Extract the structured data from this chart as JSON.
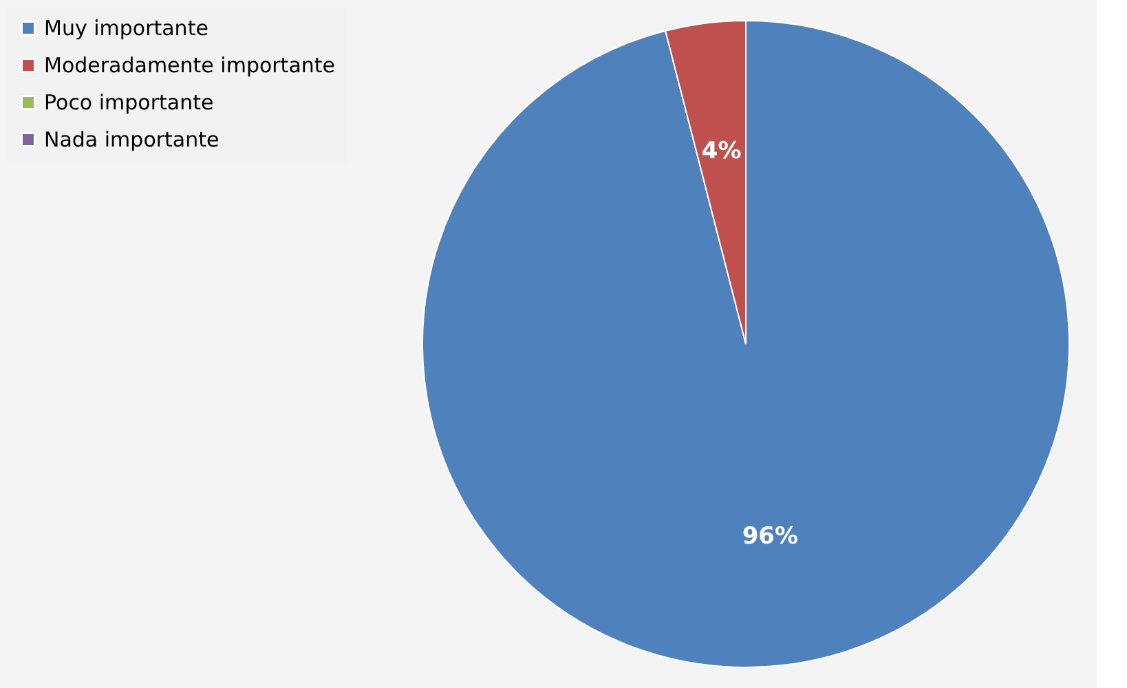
{
  "chart_data": {
    "type": "pie",
    "categories": [
      "Muy importante",
      "Moderadamente importante",
      "Poco importante",
      "Nada importante"
    ],
    "values": [
      96,
      4,
      0,
      0
    ],
    "colors": [
      "#4f81bd",
      "#c0504d",
      "#9bbb59",
      "#8064a2"
    ],
    "value_labels": [
      "96%",
      "4%",
      null,
      null
    ],
    "legend": "left"
  }
}
